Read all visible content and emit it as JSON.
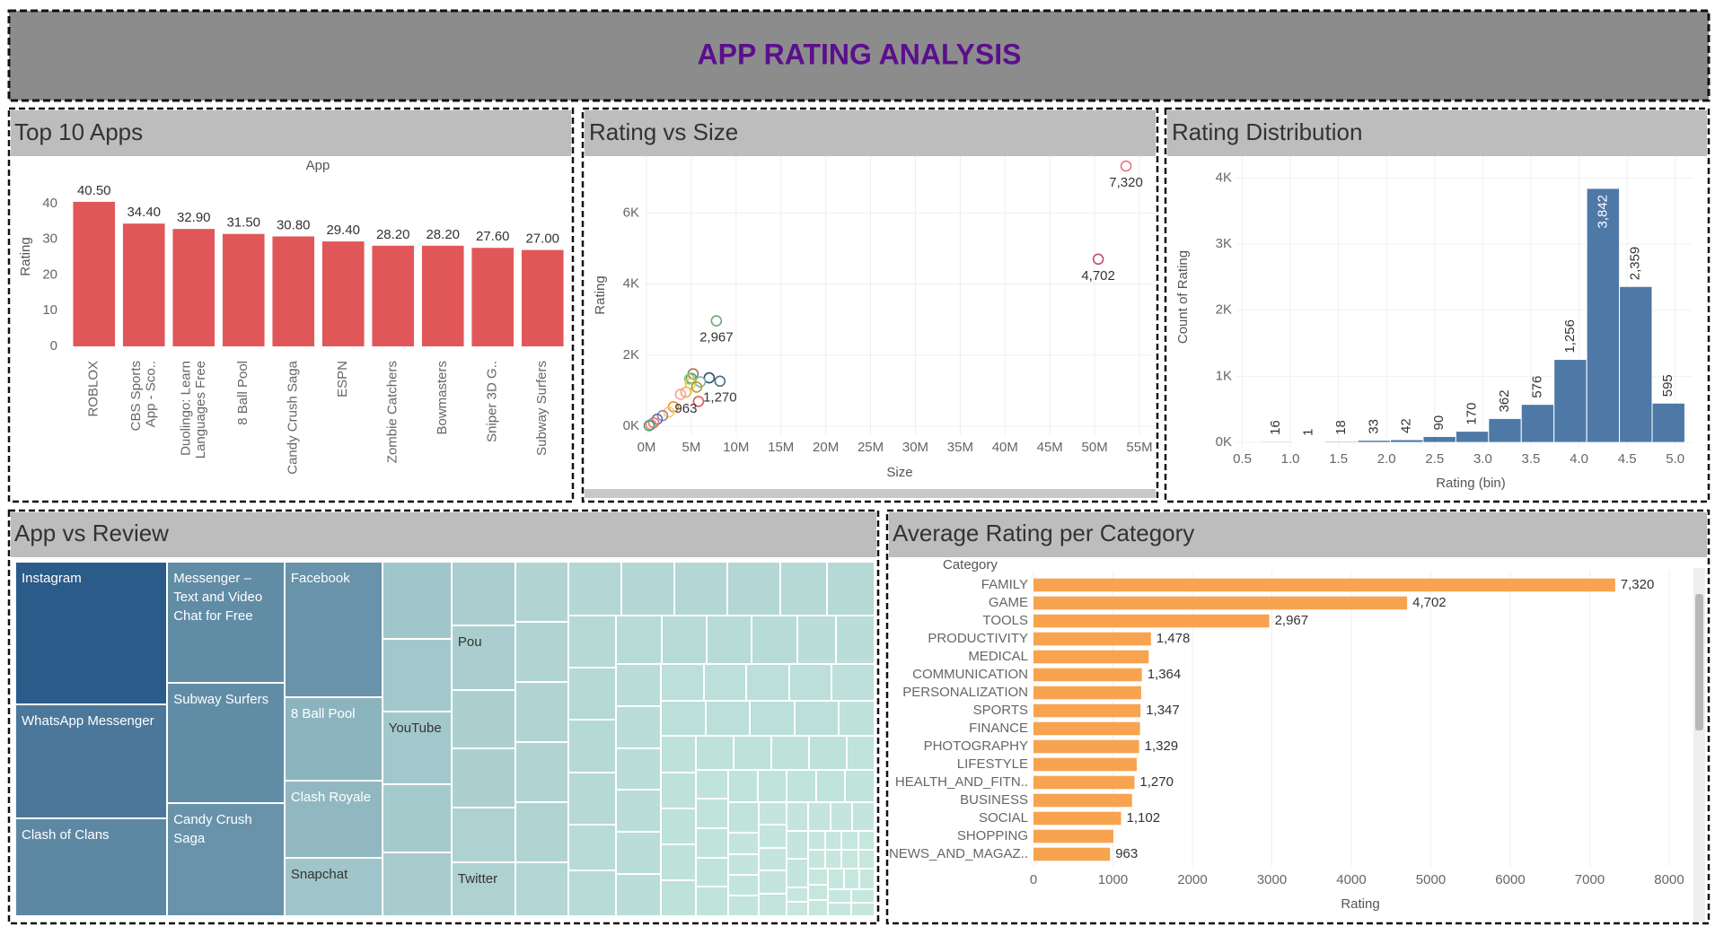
{
  "dashboard_title": "APP RATING ANALYSIS",
  "chart_data": [
    {
      "type": "bar",
      "title": "Top 10 Apps",
      "x_label": "App",
      "y_label": "Rating",
      "categories": [
        "ROBLOX",
        "CBS Sports App - Sco..",
        "Duolingo: Learn Languages Free",
        "8 Ball Pool",
        "Candy Crush Saga",
        "ESPN",
        "Zombie Catchers",
        "Bowmasters",
        "Sniper 3D G..",
        "Subway Surfers"
      ],
      "values": [
        40.5,
        34.4,
        32.9,
        31.5,
        30.8,
        29.4,
        28.2,
        28.2,
        27.6,
        27.0
      ],
      "value_labels": [
        "40.50",
        "34.40",
        "32.90",
        "31.50",
        "30.80",
        "29.40",
        "28.20",
        "28.20",
        "27.60",
        "27.00"
      ],
      "color": "#e15759",
      "ylim": [
        0,
        44
      ],
      "yticks": [
        0,
        10,
        20,
        30,
        40
      ],
      "grid": false
    },
    {
      "type": "scatter",
      "title": "Rating vs Size",
      "x_label": "Size",
      "y_label": "Rating",
      "x": [
        53500000,
        50400000,
        7800000,
        8200000,
        4400000,
        5200000,
        7000000,
        5000000,
        4800000,
        6000000,
        4900000,
        5600000,
        3800000,
        5800000,
        3000000,
        2500000,
        1800000,
        1200000,
        800000,
        500000,
        300000
      ],
      "values": [
        7320,
        4702,
        2967,
        1270,
        963,
        1478,
        1364,
        1347,
        1329,
        1250,
        1200,
        1102,
        900,
        700,
        550,
        400,
        300,
        200,
        100,
        50,
        20
      ],
      "value_labels": [
        "7,320",
        "4,702",
        "2,967",
        "1,270",
        "963",
        null,
        null,
        null,
        null,
        null,
        null,
        null,
        null,
        null,
        null,
        null,
        null,
        null,
        null,
        null,
        null
      ],
      "colors": [
        "#e8737a",
        "#c0506a",
        "#6aa876",
        "#4e6d8a",
        "#e3b04b",
        "#9c755f",
        "#2f4b6e",
        "#59a14f",
        "#8cd17d",
        "#76b7b2",
        "#edc948",
        "#b6992d",
        "#ff9d9a",
        "#e15759",
        "#f28e2b",
        "#f1ce63",
        "#b07aa1",
        "#4e79a7",
        "#d37295",
        "#f28e2b",
        "#499894"
      ],
      "xlim": [
        -200000,
        56600000
      ],
      "xticks": [
        {
          "value": 0,
          "label": "0M"
        },
        {
          "value": 5000000,
          "label": "5M"
        },
        {
          "value": 10000000,
          "label": "10M"
        },
        {
          "value": 15000000,
          "label": "15M"
        },
        {
          "value": 20000000,
          "label": "20M"
        },
        {
          "value": 25000000,
          "label": "25M"
        },
        {
          "value": 30000000,
          "label": "30M"
        },
        {
          "value": 35000000,
          "label": "35M"
        },
        {
          "value": 40000000,
          "label": "40M"
        },
        {
          "value": 45000000,
          "label": "45M"
        },
        {
          "value": 50000000,
          "label": "50M"
        },
        {
          "value": 55000000,
          "label": "55M"
        }
      ],
      "ylim": [
        -250,
        7600
      ],
      "yticks": [
        {
          "value": 0,
          "label": "0K"
        },
        {
          "value": 2000,
          "label": "2K"
        },
        {
          "value": 4000,
          "label": "4K"
        },
        {
          "value": 6000,
          "label": "6K"
        }
      ],
      "grid": true
    },
    {
      "type": "histogram",
      "title": "Rating Distribution",
      "x_label": "Rating (bin)",
      "y_label": "Count of Rating",
      "bins": [
        0.68,
        1.02,
        1.36,
        1.7,
        2.04,
        2.38,
        2.72,
        3.06,
        3.4,
        3.74,
        4.08,
        4.42,
        4.76,
        5.1
      ],
      "values": [
        16,
        1,
        18,
        33,
        42,
        90,
        170,
        362,
        576,
        1256,
        3842,
        2359,
        595
      ],
      "value_labels": [
        "16",
        "1",
        "18",
        "33",
        "42",
        "90",
        "170",
        "362",
        "576",
        "1,256",
        "3,842",
        "2,359",
        "595"
      ],
      "color": "#4e79a7",
      "xlim": [
        0.43,
        5.18
      ],
      "xticks": [
        0.5,
        {
          "value": 1,
          "label": "1.0"
        },
        1.5,
        {
          "value": 2,
          "label": "2.0"
        },
        2.5,
        {
          "value": 3,
          "label": "3.0"
        },
        3.5,
        {
          "value": 4,
          "label": "4.0"
        },
        4.5,
        {
          "value": 5,
          "label": "5.0"
        }
      ],
      "ylim": [
        -80,
        4330
      ],
      "yticks": [
        {
          "value": 0,
          "label": "0K"
        },
        {
          "value": 1000,
          "label": "1K"
        },
        {
          "value": 2000,
          "label": "2K"
        },
        {
          "value": 3000,
          "label": "3K"
        },
        {
          "value": 4000,
          "label": "4K"
        }
      ],
      "grid": true
    },
    {
      "type": "treemap",
      "title": "App vs Review",
      "color_range": [
        "#c5e7de",
        "#2b5b88"
      ],
      "items": [
        {
          "name": "Instagram",
          "value": 69
        },
        {
          "name": "WhatsApp Messenger",
          "value": 55
        },
        {
          "name": "Clash of Clans",
          "value": 47
        },
        {
          "name": "Messenger – Text and Video Chat for Free",
          "value": 45
        },
        {
          "name": "Subway Surfers",
          "value": 45
        },
        {
          "name": "Candy Crush Saga",
          "value": 42
        },
        {
          "name": "Facebook",
          "value": 42
        },
        {
          "name": "8 Ball Pool",
          "value": 26
        },
        {
          "name": "Clash Royale",
          "value": 24
        },
        {
          "name": "Snapchat",
          "value": 18
        },
        {
          "value": 17
        },
        {
          "value": 16
        },
        {
          "name": "YouTube",
          "value": 16
        },
        {
          "value": 15
        },
        {
          "value": 14
        },
        {
          "value": 13
        },
        {
          "name": "Pou",
          "value": 13
        },
        {
          "value": 12
        },
        {
          "value": 12
        },
        {
          "value": 11
        },
        {
          "name": "Twitter",
          "value": 11
        },
        {
          "value": 10
        },
        {
          "value": 10
        },
        {
          "value": 10
        },
        {
          "value": 10
        },
        {
          "value": 10
        },
        {
          "value": 9
        },
        {
          "value": 9
        },
        {
          "value": 9
        },
        {
          "value": 9
        },
        {
          "value": 9
        },
        {
          "value": 8
        },
        {
          "value": 8
        },
        {
          "value": 8
        },
        {
          "value": 8
        },
        {
          "value": 8
        },
        {
          "value": 8
        },
        {
          "value": 7
        },
        {
          "value": 7
        },
        {
          "value": 7
        },
        {
          "value": 7
        },
        {
          "value": 7
        },
        {
          "value": 7
        },
        {
          "value": 6
        },
        {
          "value": 6
        },
        {
          "value": 6
        },
        {
          "value": 6
        },
        {
          "value": 6
        },
        {
          "value": 6
        },
        {
          "value": 6
        },
        {
          "value": 6
        },
        {
          "value": 5
        },
        {
          "value": 5
        },
        {
          "value": 5
        },
        {
          "value": 5
        },
        {
          "value": 5
        },
        {
          "value": 5
        },
        {
          "value": 5
        },
        {
          "value": 5
        },
        {
          "value": 5
        },
        {
          "value": 4
        },
        {
          "value": 4
        },
        {
          "value": 4
        },
        {
          "value": 4
        },
        {
          "value": 4
        },
        {
          "value": 4
        },
        {
          "value": 4
        },
        {
          "value": 4
        },
        {
          "value": 4
        },
        {
          "value": 4
        },
        {
          "value": 3
        },
        {
          "value": 3
        },
        {
          "value": 3
        },
        {
          "value": 3
        },
        {
          "value": 3
        },
        {
          "value": 3
        },
        {
          "value": 3
        },
        {
          "value": 3
        },
        {
          "value": 3
        },
        {
          "value": 3
        },
        {
          "value": 3
        },
        {
          "value": 3
        },
        {
          "value": 2
        },
        {
          "value": 2
        },
        {
          "value": 2
        },
        {
          "value": 2
        },
        {
          "value": 2
        },
        {
          "value": 2
        },
        {
          "value": 2
        },
        {
          "value": 2
        },
        {
          "value": 2
        },
        {
          "value": 2
        },
        {
          "value": 2
        },
        {
          "value": 2
        },
        {
          "value": 2
        },
        {
          "value": 2
        },
        {
          "value": 2
        },
        {
          "value": 1
        },
        {
          "value": 1
        },
        {
          "value": 1
        },
        {
          "value": 1
        },
        {
          "value": 1
        },
        {
          "value": 1
        },
        {
          "value": 1
        },
        {
          "value": 1
        },
        {
          "value": 1
        },
        {
          "value": 1
        },
        {
          "value": 1
        },
        {
          "value": 1
        },
        {
          "value": 1
        },
        {
          "value": 1
        },
        {
          "value": 1
        },
        {
          "value": 1
        },
        {
          "value": 1
        },
        {
          "value": 1
        },
        {
          "value": 1
        },
        {
          "value": 1
        }
      ]
    },
    {
      "type": "bar",
      "orientation": "horizontal",
      "title": "Average Rating per Category",
      "y_label": "Category",
      "x_label": "Rating",
      "categories": [
        "FAMILY",
        "GAME",
        "TOOLS",
        "PRODUCTIVITY",
        "MEDICAL",
        "COMMUNICATION",
        "PERSONALIZATION",
        "SPORTS",
        "FINANCE",
        "PHOTOGRAPHY",
        "LIFESTYLE",
        "HEALTH_AND_FITN..",
        "BUSINESS",
        "SOCIAL",
        "SHOPPING",
        "NEWS_AND_MAGAZ.."
      ],
      "values": [
        7320,
        4702,
        2967,
        1478,
        1450,
        1364,
        1355,
        1347,
        1340,
        1329,
        1300,
        1270,
        1240,
        1102,
        1005,
        963
      ],
      "value_labels": [
        "7,320",
        "4,702",
        "2,967",
        "1,478",
        null,
        "1,364",
        null,
        "1,347",
        null,
        "1,329",
        null,
        "1,270",
        null,
        "1,102",
        null,
        "963"
      ],
      "color": "#f8a350",
      "xlim": [
        0,
        8260
      ],
      "xticks": [
        0,
        1000,
        2000,
        3000,
        4000,
        5000,
        6000,
        7000,
        8000
      ],
      "grid": true
    }
  ]
}
